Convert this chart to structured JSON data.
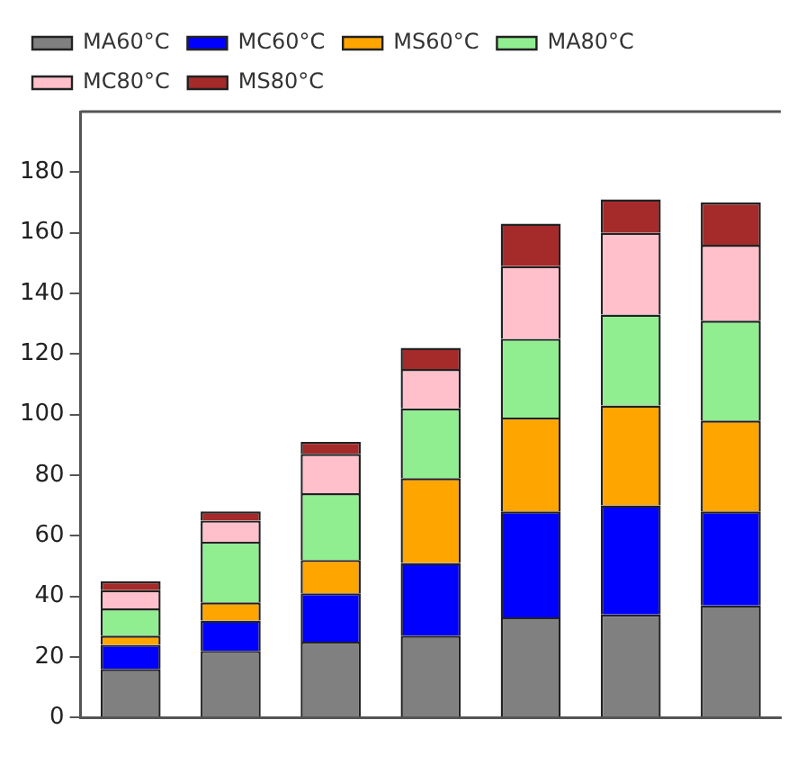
{
  "chart_data": {
    "type": "bar",
    "stacked": true,
    "categories": [
      null,
      null,
      null,
      null,
      null,
      null,
      null
    ],
    "series": [
      {
        "name": "MA60°C",
        "color": "#808080",
        "values": [
          16,
          22,
          25,
          27,
          33,
          34,
          37
        ]
      },
      {
        "name": "MC60°C",
        "color": "#0000ff",
        "values": [
          8,
          10,
          16,
          24,
          35,
          36,
          31
        ]
      },
      {
        "name": "MS60°C",
        "color": "#ffa500",
        "values": [
          3,
          6,
          11,
          28,
          31,
          33,
          30
        ]
      },
      {
        "name": "MA80°C",
        "color": "#90ee90",
        "values": [
          9,
          20,
          22,
          23,
          26,
          30,
          33
        ]
      },
      {
        "name": "MC80°C",
        "color": "#ffc0cb",
        "values": [
          6,
          7,
          13,
          13,
          24,
          27,
          25
        ]
      },
      {
        "name": "MS80°C",
        "color": "#a52a2a",
        "values": [
          3,
          3,
          4,
          7,
          14,
          11,
          14
        ]
      }
    ],
    "ylim": [
      0,
      200
    ],
    "yticks": [
      0,
      20,
      40,
      60,
      80,
      100,
      120,
      140,
      160,
      180
    ],
    "grid": false,
    "legend": "top"
  }
}
